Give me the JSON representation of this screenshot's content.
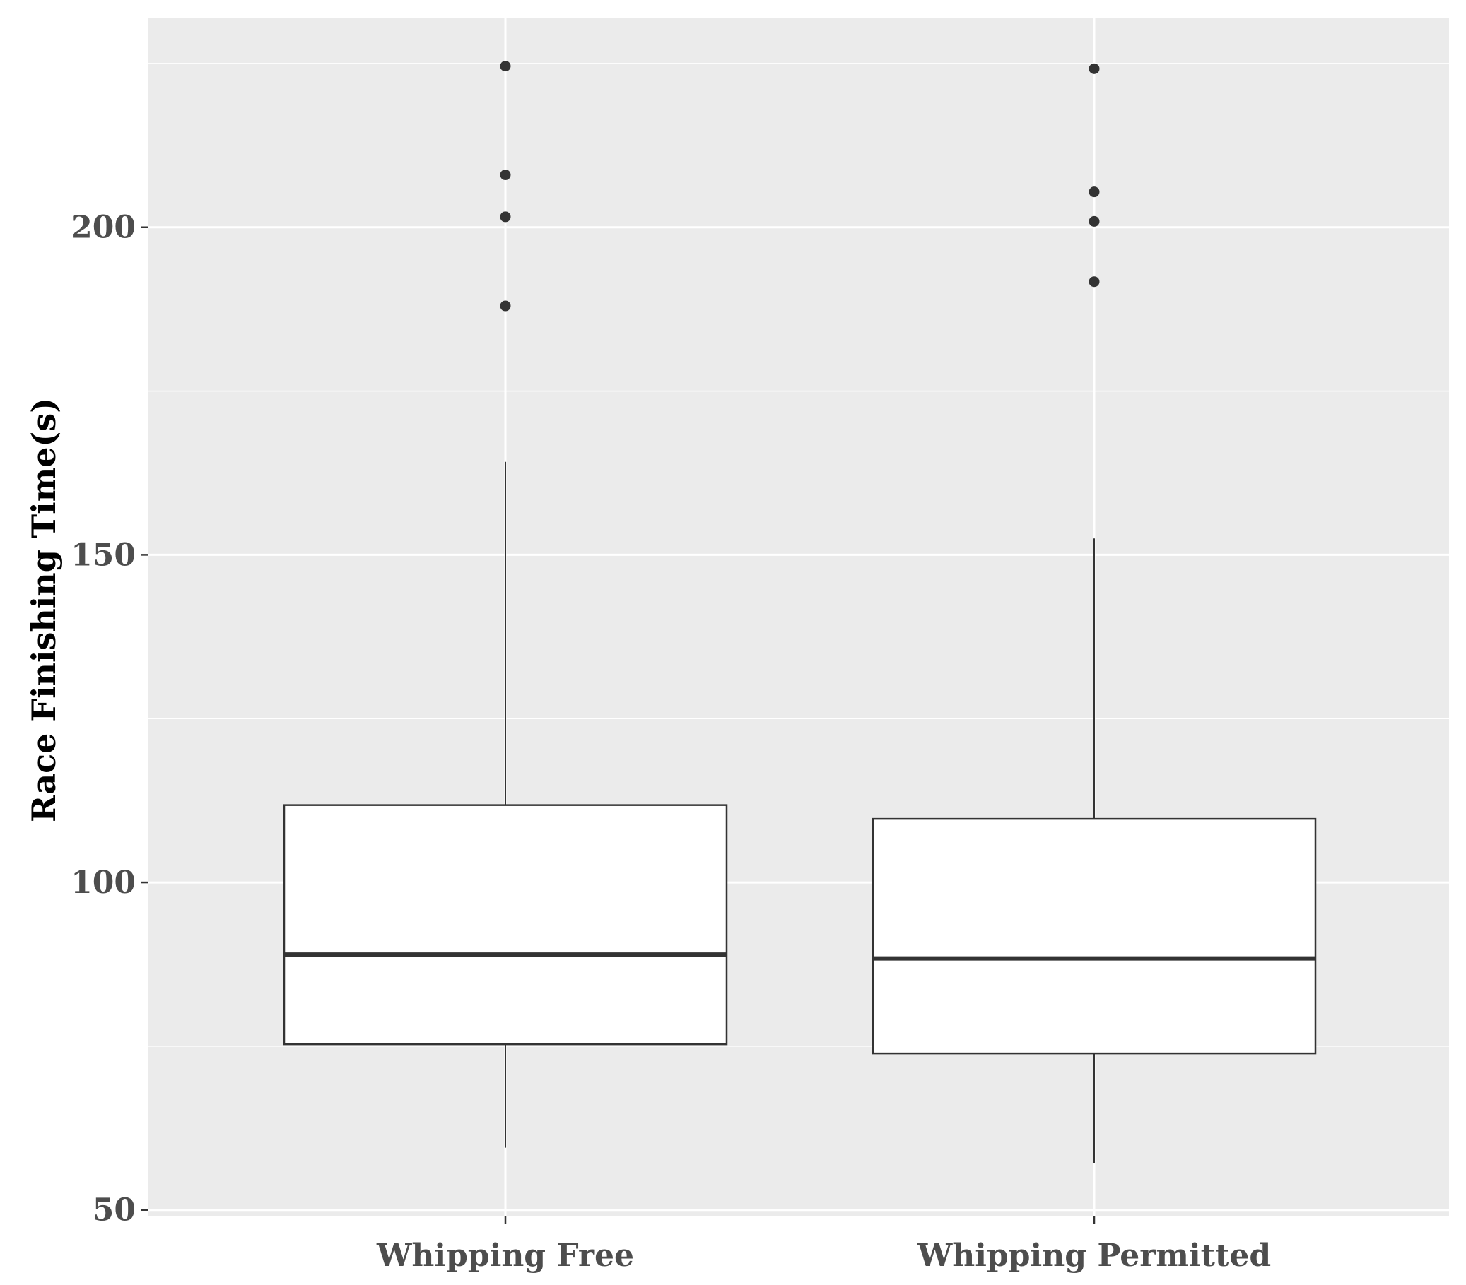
{
  "chart_data": {
    "type": "boxplot",
    "title": "",
    "xlabel": "",
    "ylabel": "Race Finishing Time(s)",
    "ylim": [
      49,
      232
    ],
    "y_ticks": [
      50,
      100,
      150,
      200
    ],
    "y_tick_labels": [
      "50",
      "100",
      "150",
      "200"
    ],
    "grid": true,
    "panel_background": "#ebebeb",
    "grid_color": "#ffffff",
    "box_fill": "#ffffff",
    "line_color": "#333333",
    "categories": [
      "Whipping Free",
      "Whipping Permitted"
    ],
    "boxes": [
      {
        "category": "Whipping Free",
        "whisker_low": 59.5,
        "q1": 75.3,
        "median": 89.0,
        "q3": 111.8,
        "whisker_high": 164.2,
        "outliers": [
          188.0,
          201.6,
          208.0,
          224.6
        ]
      },
      {
        "category": "Whipping Permitted",
        "whisker_low": 57.2,
        "q1": 73.9,
        "median": 88.4,
        "q3": 109.7,
        "whisker_high": 152.5,
        "outliers": [
          191.7,
          200.9,
          205.4,
          224.2
        ]
      }
    ]
  }
}
